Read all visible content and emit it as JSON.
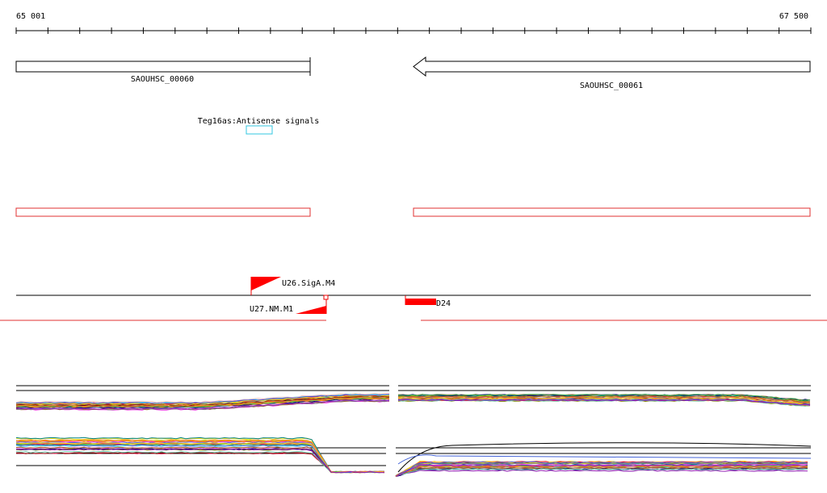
{
  "ruler": {
    "start_label": "65 001",
    "end_label": "67 500",
    "start": 65001,
    "end": 67500,
    "tick_count": 26
  },
  "genes": [
    {
      "name": "SAOUHSC_00060",
      "strand": "+",
      "start": 65001,
      "end": 65927
    },
    {
      "name": "SAOUHSC_00061",
      "strand": "-",
      "start": 66250,
      "end": 67500
    }
  ],
  "signal": {
    "label": "Teg16as:Antisense signals",
    "color": "#33c7e0",
    "start": 65733,
    "end": 65815
  },
  "regions": {
    "color": "#e03030",
    "items": [
      {
        "start": 65001,
        "end": 65927
      },
      {
        "start": 66250,
        "end": 67500
      }
    ]
  },
  "features": [
    {
      "label": "U26.SigA.M4",
      "type": "promoter-forward",
      "start": 65735
    },
    {
      "label": "U27.NM.M1",
      "type": "promoter-reverse",
      "start": 65970
    },
    {
      "label": "D24",
      "type": "terminator-block",
      "start": 66208,
      "end": 66305
    }
  ],
  "colors": {
    "accent": "#ff0000",
    "axis": "#000000"
  },
  "expression_tracks": {
    "note_colors": [
      "#e6194b",
      "#3cb44b",
      "#ffe119",
      "#4363d8",
      "#f58231",
      "#911eb4",
      "#46f0f0",
      "#f032e6",
      "#bcf60c",
      "#fabebe",
      "#008080",
      "#e6beff",
      "#9a6324",
      "#808000",
      "#800000",
      "#000075",
      "#808080",
      "#ff7f00",
      "#a65628",
      "#66c2a5"
    ]
  }
}
